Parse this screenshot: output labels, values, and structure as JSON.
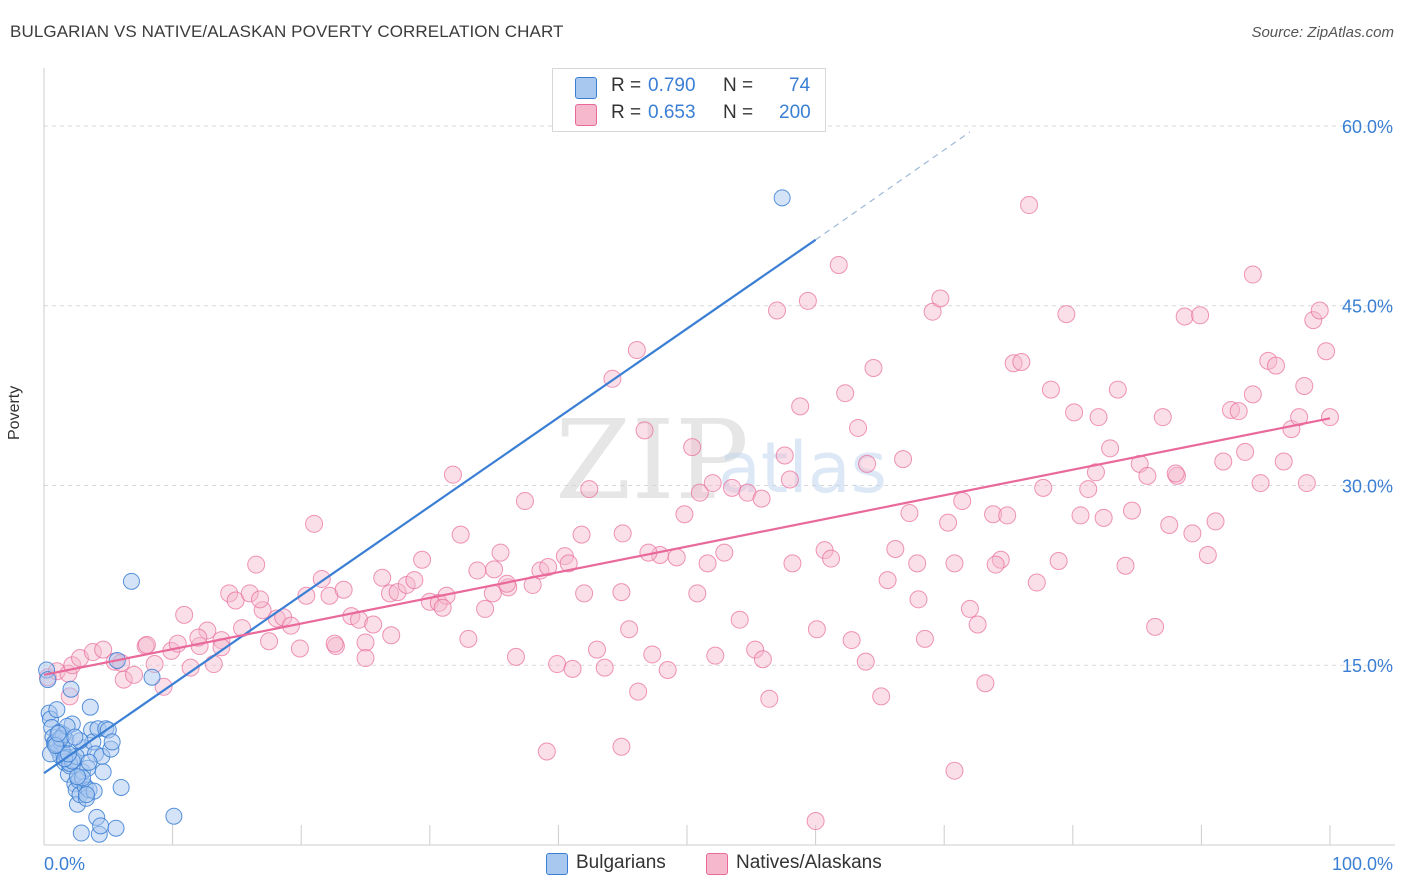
{
  "title": "BULGARIAN VS NATIVE/ALASKAN POVERTY CORRELATION CHART",
  "source": "Source: ZipAtlas.com",
  "watermark": {
    "zip": "ZIP",
    "atlas": "atlas"
  },
  "legend": {
    "rows": [
      {
        "r_label": "R =",
        "r_value": "0.790",
        "n_label": "N =",
        "n_value": "74"
      },
      {
        "r_label": "R =",
        "r_value": "0.653",
        "n_label": "N =",
        "n_value": "200"
      }
    ]
  },
  "colors": {
    "blue": "#3b7fd4",
    "blue_fill": "#a9c8f0",
    "pink": "#e8699a",
    "pink_fill": "#f5b8cc",
    "grid": "#d9d9d9",
    "tick_text": "#3b7fd4"
  },
  "chart_data": {
    "type": "scatter",
    "title": "BULGARIAN VS NATIVE/ALASKAN POVERTY CORRELATION CHART",
    "xlabel": "",
    "ylabel": "Poverty",
    "xlim": [
      0,
      100
    ],
    "ylim": [
      0,
      64
    ],
    "x_tick_labels": [
      "0.0%",
      "100.0%"
    ],
    "y_ticks": [
      15,
      30,
      45,
      60
    ],
    "y_tick_labels": [
      "15.0%",
      "30.0%",
      "45.0%",
      "60.0%"
    ],
    "series": [
      {
        "name": "Bulgarians",
        "r": 0.79,
        "n": 74,
        "trend": {
          "x0": 0,
          "y0": 6.0,
          "x1": 60,
          "y1": 50.5,
          "dash_to_x": 72,
          "dash_to_y": 59.5
        },
        "points": [
          [
            0.2,
            14.6
          ],
          [
            0.3,
            13.8
          ],
          [
            0.4,
            11.0
          ],
          [
            0.5,
            10.5
          ],
          [
            0.6,
            9.8
          ],
          [
            0.7,
            9.0
          ],
          [
            0.8,
            8.5
          ],
          [
            0.9,
            8.6
          ],
          [
            1.0,
            11.3
          ],
          [
            1.1,
            7.9
          ],
          [
            1.2,
            9.4
          ],
          [
            1.3,
            7.4
          ],
          [
            1.4,
            8.2
          ],
          [
            1.5,
            7.7
          ],
          [
            1.6,
            6.9
          ],
          [
            1.7,
            8.8
          ],
          [
            1.8,
            7.3
          ],
          [
            1.9,
            5.9
          ],
          [
            2.0,
            6.6
          ],
          [
            2.1,
            13.0
          ],
          [
            2.2,
            10.1
          ],
          [
            2.3,
            7.1
          ],
          [
            2.4,
            5.1
          ],
          [
            2.5,
            4.6
          ],
          [
            2.6,
            3.4
          ],
          [
            2.7,
            5.4
          ],
          [
            2.8,
            4.2
          ],
          [
            2.9,
            1.0
          ],
          [
            3.0,
            6.1
          ],
          [
            3.1,
            8.1
          ],
          [
            3.2,
            4.9
          ],
          [
            3.3,
            3.9
          ],
          [
            3.4,
            6.4
          ],
          [
            3.5,
            4.6
          ],
          [
            3.6,
            11.5
          ],
          [
            3.7,
            9.6
          ],
          [
            3.8,
            8.6
          ],
          [
            3.9,
            4.5
          ],
          [
            4.0,
            7.6
          ],
          [
            4.1,
            2.3
          ],
          [
            4.2,
            9.7
          ],
          [
            4.3,
            0.9
          ],
          [
            4.4,
            1.6
          ],
          [
            4.5,
            7.4
          ],
          [
            4.6,
            6.1
          ],
          [
            4.8,
            9.7
          ],
          [
            5.0,
            9.6
          ],
          [
            5.2,
            8.0
          ],
          [
            5.3,
            8.6
          ],
          [
            5.6,
            1.4
          ],
          [
            5.7,
            15.4
          ],
          [
            6.0,
            4.8
          ],
          [
            6.8,
            22.0
          ],
          [
            8.4,
            14.0
          ],
          [
            10.1,
            2.4
          ],
          [
            57.4,
            54.0
          ],
          [
            0.5,
            7.6
          ],
          [
            1.0,
            8.4
          ],
          [
            1.5,
            9.2
          ],
          [
            2.0,
            6.8
          ],
          [
            2.5,
            7.4
          ],
          [
            3.0,
            5.6
          ],
          [
            1.3,
            8.9
          ],
          [
            2.2,
            7.0
          ],
          [
            2.8,
            8.7
          ],
          [
            1.8,
            9.9
          ],
          [
            0.9,
            8.3
          ],
          [
            1.6,
            7.2
          ],
          [
            2.4,
            9.0
          ],
          [
            3.3,
            4.2
          ],
          [
            1.1,
            9.3
          ],
          [
            1.9,
            7.6
          ],
          [
            2.6,
            5.7
          ],
          [
            3.5,
            6.9
          ]
        ]
      },
      {
        "name": "Natives/Alaskans",
        "r": 0.653,
        "n": 200,
        "trend": {
          "x0": 0,
          "y0": 14.2,
          "x1": 100,
          "y1": 35.6
        },
        "points": [
          [
            0.3,
            14.0
          ],
          [
            1.0,
            14.5
          ],
          [
            1.9,
            14.3
          ],
          [
            2.2,
            15.0
          ],
          [
            2.8,
            15.6
          ],
          [
            3.8,
            16.1
          ],
          [
            4.6,
            16.3
          ],
          [
            5.5,
            15.3
          ],
          [
            6.2,
            13.8
          ],
          [
            7.0,
            14.2
          ],
          [
            7.9,
            16.6
          ],
          [
            8.6,
            15.1
          ],
          [
            9.3,
            13.2
          ],
          [
            9.9,
            16.2
          ],
          [
            10.4,
            16.8
          ],
          [
            10.9,
            19.2
          ],
          [
            11.4,
            14.8
          ],
          [
            12.1,
            16.6
          ],
          [
            12.7,
            17.9
          ],
          [
            13.2,
            15.1
          ],
          [
            13.8,
            17.1
          ],
          [
            14.4,
            21.0
          ],
          [
            14.9,
            20.4
          ],
          [
            15.4,
            18.1
          ],
          [
            16.0,
            21.0
          ],
          [
            16.5,
            23.4
          ],
          [
            17.0,
            19.6
          ],
          [
            17.5,
            17.0
          ],
          [
            18.1,
            18.9
          ],
          [
            18.6,
            19.0
          ],
          [
            19.2,
            18.3
          ],
          [
            19.9,
            16.4
          ],
          [
            20.4,
            20.8
          ],
          [
            21.0,
            26.8
          ],
          [
            21.6,
            22.2
          ],
          [
            22.2,
            20.8
          ],
          [
            22.7,
            16.6
          ],
          [
            23.3,
            21.3
          ],
          [
            23.9,
            19.1
          ],
          [
            24.5,
            18.8
          ],
          [
            25.0,
            16.9
          ],
          [
            25.6,
            18.4
          ],
          [
            26.3,
            22.3
          ],
          [
            26.9,
            21.0
          ],
          [
            27.5,
            21.1
          ],
          [
            28.2,
            21.7
          ],
          [
            28.8,
            22.1
          ],
          [
            29.4,
            23.8
          ],
          [
            30.0,
            20.3
          ],
          [
            30.7,
            20.2
          ],
          [
            31.3,
            20.8
          ],
          [
            31.8,
            30.9
          ],
          [
            32.4,
            25.9
          ],
          [
            33.0,
            17.2
          ],
          [
            33.7,
            22.9
          ],
          [
            34.3,
            19.7
          ],
          [
            34.9,
            21.0
          ],
          [
            35.5,
            24.4
          ],
          [
            36.1,
            21.5
          ],
          [
            36.7,
            15.7
          ],
          [
            37.4,
            28.7
          ],
          [
            38.0,
            21.7
          ],
          [
            38.6,
            22.9
          ],
          [
            39.2,
            23.2
          ],
          [
            39.9,
            15.1
          ],
          [
            40.5,
            24.1
          ],
          [
            41.1,
            14.7
          ],
          [
            41.8,
            25.9
          ],
          [
            42.4,
            29.7
          ],
          [
            43.0,
            16.3
          ],
          [
            43.6,
            14.8
          ],
          [
            44.2,
            38.9
          ],
          [
            44.9,
            21.1
          ],
          [
            45.5,
            18.0
          ],
          [
            46.1,
            41.3
          ],
          [
            46.7,
            34.6
          ],
          [
            47.3,
            15.9
          ],
          [
            47.9,
            24.2
          ],
          [
            48.5,
            14.6
          ],
          [
            49.2,
            24.0
          ],
          [
            49.8,
            27.6
          ],
          [
            50.4,
            33.2
          ],
          [
            51.0,
            29.4
          ],
          [
            51.6,
            23.5
          ],
          [
            52.2,
            15.8
          ],
          [
            52.9,
            24.4
          ],
          [
            53.5,
            29.8
          ],
          [
            54.1,
            18.8
          ],
          [
            54.7,
            29.4
          ],
          [
            55.3,
            16.3
          ],
          [
            55.8,
            28.9
          ],
          [
            56.4,
            12.2
          ],
          [
            57.0,
            44.6
          ],
          [
            57.6,
            32.5
          ],
          [
            58.2,
            23.5
          ],
          [
            58.8,
            36.6
          ],
          [
            59.4,
            45.4
          ],
          [
            60.1,
            18.0
          ],
          [
            60.7,
            24.6
          ],
          [
            61.2,
            23.9
          ],
          [
            61.8,
            48.4
          ],
          [
            62.3,
            37.7
          ],
          [
            62.8,
            17.1
          ],
          [
            63.3,
            34.8
          ],
          [
            63.9,
            15.3
          ],
          [
            64.5,
            39.8
          ],
          [
            65.1,
            12.4
          ],
          [
            65.6,
            22.1
          ],
          [
            66.2,
            24.7
          ],
          [
            66.8,
            32.2
          ],
          [
            67.3,
            27.7
          ],
          [
            67.9,
            23.5
          ],
          [
            68.5,
            17.2
          ],
          [
            69.1,
            44.5
          ],
          [
            69.7,
            45.6
          ],
          [
            70.3,
            26.9
          ],
          [
            70.8,
            23.5
          ],
          [
            71.4,
            28.7
          ],
          [
            72.0,
            19.7
          ],
          [
            72.6,
            18.4
          ],
          [
            73.2,
            13.5
          ],
          [
            73.8,
            27.6
          ],
          [
            74.4,
            23.8
          ],
          [
            74.9,
            27.5
          ],
          [
            75.4,
            40.2
          ],
          [
            76.0,
            40.3
          ],
          [
            76.6,
            53.4
          ],
          [
            77.2,
            21.9
          ],
          [
            77.7,
            29.8
          ],
          [
            78.3,
            38.0
          ],
          [
            78.9,
            23.7
          ],
          [
            79.5,
            44.3
          ],
          [
            80.1,
            36.1
          ],
          [
            80.6,
            27.5
          ],
          [
            81.2,
            29.7
          ],
          [
            81.8,
            31.1
          ],
          [
            82.4,
            27.3
          ],
          [
            82.9,
            33.1
          ],
          [
            83.5,
            38.0
          ],
          [
            84.1,
            23.3
          ],
          [
            84.6,
            27.9
          ],
          [
            85.2,
            31.8
          ],
          [
            85.8,
            30.8
          ],
          [
            86.4,
            18.2
          ],
          [
            87.0,
            35.7
          ],
          [
            87.5,
            26.7
          ],
          [
            88.1,
            30.8
          ],
          [
            88.7,
            44.1
          ],
          [
            89.3,
            26.0
          ],
          [
            89.9,
            44.2
          ],
          [
            90.5,
            24.2
          ],
          [
            91.1,
            27.0
          ],
          [
            91.7,
            32.0
          ],
          [
            92.3,
            36.3
          ],
          [
            92.9,
            36.2
          ],
          [
            93.4,
            32.8
          ],
          [
            94.0,
            47.6
          ],
          [
            94.6,
            30.2
          ],
          [
            95.2,
            40.4
          ],
          [
            95.8,
            40.0
          ],
          [
            96.4,
            32.0
          ],
          [
            97.0,
            34.7
          ],
          [
            97.6,
            35.7
          ],
          [
            98.2,
            30.2
          ],
          [
            98.7,
            43.8
          ],
          [
            99.2,
            44.6
          ],
          [
            99.7,
            41.2
          ],
          [
            100.0,
            35.7
          ],
          [
            22.6,
            16.8
          ],
          [
            27.0,
            17.5
          ],
          [
            13.8,
            16.5
          ],
          [
            16.8,
            20.5
          ],
          [
            31.0,
            19.8
          ],
          [
            36.0,
            21.8
          ],
          [
            40.8,
            23.5
          ],
          [
            45.0,
            26.0
          ],
          [
            50.8,
            21.0
          ],
          [
            55.9,
            15.5
          ],
          [
            46.2,
            12.8
          ],
          [
            39.1,
            7.8
          ],
          [
            44.9,
            8.2
          ],
          [
            60.0,
            2.0
          ],
          [
            70.8,
            6.2
          ],
          [
            2.0,
            12.4
          ],
          [
            6.0,
            15.2
          ],
          [
            8.0,
            16.7
          ],
          [
            12.0,
            17.3
          ],
          [
            25.0,
            15.6
          ],
          [
            35.0,
            23.0
          ],
          [
            42.0,
            21.0
          ],
          [
            47.0,
            24.4
          ],
          [
            52.0,
            30.2
          ],
          [
            58.0,
            30.5
          ],
          [
            64.0,
            31.8
          ],
          [
            68.0,
            20.5
          ],
          [
            74.0,
            23.4
          ],
          [
            82.0,
            35.7
          ],
          [
            88.0,
            31.0
          ],
          [
            94.0,
            37.6
          ],
          [
            98.0,
            38.3
          ]
        ]
      }
    ]
  },
  "bottom_legend": {
    "items": [
      {
        "label": "Bulgarians"
      },
      {
        "label": "Natives/Alaskans"
      }
    ]
  }
}
